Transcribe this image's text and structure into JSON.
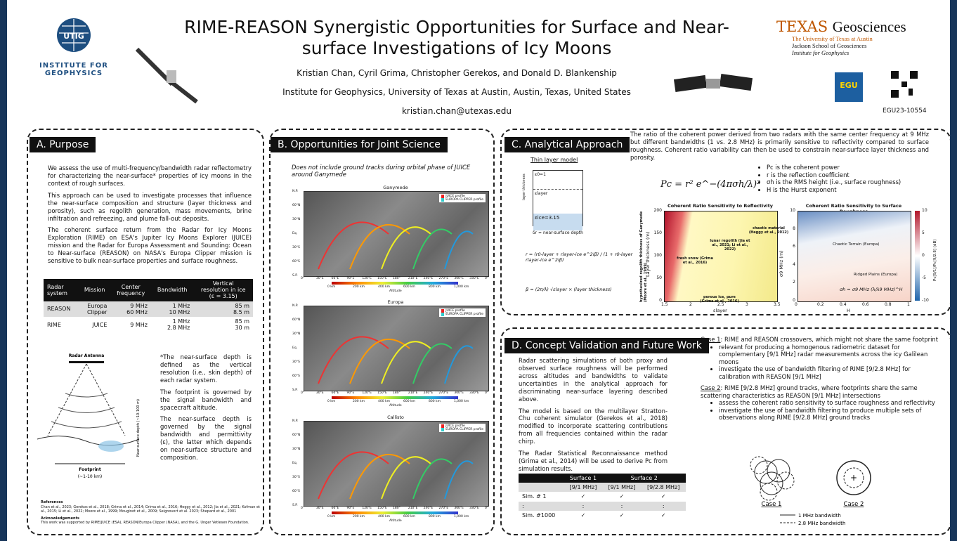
{
  "header": {
    "utig": "UTIG",
    "institute": "INSTITUTE FOR GEOPHYSICS",
    "title": "RIME-REASON Synergistic Opportunities for Surface and Near-surface Investigations of Icy Moons",
    "authors": "Kristian Chan, Cyril Grima, Christopher Gerekos, and Donald D. Blankenship",
    "affiliation": "Institute for Geophysics, University of Texas at Austin, Austin, Texas, United States",
    "email": "kristian.chan@utexas.edu",
    "texas": "TEXAS",
    "geosciences": "Geosciences",
    "ut": "The University of Texas at Austin",
    "jackson": "Jackson School of Geosciences",
    "ig": "Institute for Geophysics",
    "egu": "EGU",
    "code": "EGU23-10554"
  },
  "purpose": {
    "heading": "A. Purpose",
    "paragraphs": [
      "We assess the use of multi-frequency/bandwidth radar reflectometry for characterizing the near-surface* properties of icy moons in the context of rough surfaces.",
      "This approach can be used to investigate processes that influence the near-surface composition and structure (layer thickness and porosity), such as regolith generation, mass movements, brine infiltration and refreezing, and plume fall-out deposits.",
      "The coherent surface return from the Radar for Icy Moons Exploration (RIME) on ESA's Jupiter Icy Moons Explorer (JUICE) mission and the Radar for Europa Assessment and Sounding: Ocean to Near-surface (REASON) on NASA's Europa Clipper mission is sensitive to bulk near-surface properties and surface roughness."
    ],
    "table": {
      "header": [
        "Radar\nsystem",
        "Mission",
        "Center\nfrequency",
        "Bandwidth",
        "Vertical\nresolution in ice\n(ε = 3.15)"
      ],
      "rows": [
        [
          "REASON",
          "Europa\nClipper",
          "9 MHz\n60 MHz",
          "1 MHz\n10 MHz",
          "85 m\n8.5 m"
        ],
        [
          "RIME",
          "JUICE",
          "9 MHz",
          "1 MHz\n2.8 MHz",
          "85 m\n30 m"
        ]
      ]
    },
    "figure": {
      "antenna": "Radar Antenna",
      "footprint": "Footprint",
      "footprint_size": "(~1-10 km)",
      "depth": "Near-surface depth (~10-100 m)"
    },
    "notes": [
      "*The near-surface depth is defined as the vertical resolution (i.e., skin depth) of each radar system.",
      "The footprint is governed by the signal bandwidth and spacecraft altitude.",
      "The near-surface depth is governed by the signal bandwidth and permittivity (ε), the latter which depends on near-surface structure and composition."
    ],
    "references_heading": "References",
    "references": "Chan et al., 2023; Gerekos et al., 2018; Grima et al., 2014; Grima et al., 2016; Heggy et al., 2012; Jia et al., 2021; Kofman et al., 2015; Li et al., 2022; Moore et al., 1999; Mouginot et al., 2009; Seignovert et al. 2023; Shepard et al., 2001",
    "ack_heading": "Acknowledgements",
    "ack": "This work was supported by RIME/JUICE (ESA), REASON/Europa Clipper (NASA), and the G. Unger Vetlesen Foundation."
  },
  "science": {
    "heading": "B. Opportunities for Joint Science",
    "note": "Does not include ground tracks during orbital phase of JUICE around Ganymede",
    "panels": [
      "Ganymede",
      "Europa",
      "Callisto"
    ],
    "legend": [
      "JUICE profile",
      "EUROPA CLIPPER profile"
    ],
    "lon": [
      "0°",
      "30°E",
      "60°E",
      "90°E",
      "120°E",
      "150°E",
      "180°",
      "210°E",
      "240°E",
      "270°E",
      "300°E",
      "330°E",
      "0°"
    ],
    "lat": [
      "N.P.",
      "60°N",
      "30°N",
      "Eq.",
      "30°S",
      "60°S",
      "S.P."
    ],
    "colorbar": [
      "0 km",
      "200 km",
      "400 km",
      "600 km",
      "800 km",
      "1,000 km"
    ],
    "colorbar_label": "Altitude"
  },
  "approach": {
    "heading": "C. Analytical Approach",
    "text": "The ratio of the coherent power derived from two radars with the same center frequency at 9 MHz but different bandwidths (1 vs. 2.8 MHz) is primarily sensitive to reflectivity compared to surface roughness. Coherent ratio variability can then be used to constrain near-surface layer thickness and porosity.",
    "formula": "Pc = r² e^−(4πσh/λ)²",
    "bullets": [
      "Pc is the coherent power",
      "r is the reflection coefficient",
      "σh is the RMS height (i.e., surface roughness)",
      "H is the Hurst exponent"
    ],
    "model": {
      "title": "Thin layer model",
      "e0": "ε0=1",
      "elayer": "εlayer",
      "eice": "εice=3.15",
      "thickness": "layer thickness",
      "depth": "δr = near-surface depth",
      "r": "r = (r0-layer + rlayer-ice e^2iβ) / (1 + r0-layer rlayer-ice e^2iβ)",
      "beta": "β = (2π/λ) √εlayer × (layer thickness)"
    },
    "plot1": {
      "title": "Coherent Ratio Sensitivity to Reflectivity",
      "ylabel": "Layer thickness (m)",
      "xlabel": "εlayer",
      "outer": "hypothesized regolith thickness of Ganymede (Moore et al., 1999)",
      "xticks": [
        1.5,
        2,
        2.5,
        3,
        3.5
      ],
      "yticks": [
        0,
        50,
        100,
        150,
        200
      ],
      "notes": [
        "lunar regolith (Jia et al., 2021; Li et al., 2022)",
        "chaotic material (Heggy et al., 2012)",
        "fresh snow (Grima et al., 2016)",
        "porous ice, pure (Grima et al., 2016)"
      ]
    },
    "plot2": {
      "title": "Coherent Ratio Sensitivity to Surface Roughness",
      "ylabel": "σ9 MHz (m)",
      "xlabel": "H",
      "xticks": [
        0,
        0.2,
        0.4,
        0.6,
        0.8,
        1
      ],
      "yticks": [
        0,
        2,
        4,
        6,
        8,
        10
      ],
      "cticks": [
        10,
        5,
        0,
        -5,
        -10
      ],
      "clabel": "Pc[9/1]/Pc[9/2.8] (dB)",
      "notes": [
        "Chaotic Terrain (Europa)",
        "Ridged Plains (Europa)"
      ],
      "formula": "σh = σ9 MHz (λ/λ9 MHz)^H"
    }
  },
  "validation": {
    "heading": "D. Concept Validation and Future Work",
    "paragraphs": [
      "Radar scattering simulations of both proxy and observed surface roughness will be performed across altitudes and bandwidths to validate uncertainties in the analytical approach for discriminating near-surface layering described above.",
      "The model is based on the multilayer Stratton-Chu coherent simulator (Gerekos et al., 2018) modified to incorporate scattering contributions from all frequencies contained within the radar chirp.",
      "The Radar Statistical Reconnaissance method (Grima et al., 2014) will be used to derive Pc from simulation results."
    ],
    "table": {
      "groups": [
        null,
        "Surface 1",
        "Surface 2"
      ],
      "sub": [
        null,
        "[9/1 MHz]",
        "[9/1 MHz]",
        "[9/2.8 MHz]"
      ],
      "rows": [
        [
          "Sim. # 1",
          "✓",
          "✓",
          "✓"
        ],
        [
          ":",
          ":",
          ":",
          ":"
        ],
        [
          "Sim. #1000",
          "✓",
          "✓",
          "✓"
        ]
      ]
    },
    "cases": [
      {
        "name": "Case 1",
        "text": ": RIME and REASON crossovers, which might not share the same footprint",
        "bullets": [
          "relevant for producing a homogenous radiometric dataset for complementary [9/1 MHz] radar measurements across the icy Galilean moons",
          "investigate the use of bandwidth filtering of RIME [9/2.8 MHz] for calibration with REASON [9/1 MHz]"
        ]
      },
      {
        "name": "Case 2",
        "text": ": RIME [9/2.8 MHz] ground tracks, where footprints share the same scattering characteristics as REASON [9/1 MHz] intersections",
        "bullets": [
          "assess the coherent ratio sensitivity to surface roughness and reflectivity",
          "investigate the use of bandwidth filtering to produce multiple sets of observations along RIME [9/2.8 MHz] ground tracks"
        ]
      }
    ],
    "legend": [
      "1 MHz bandwidth",
      "2.8 MHz bandwidth"
    ]
  }
}
